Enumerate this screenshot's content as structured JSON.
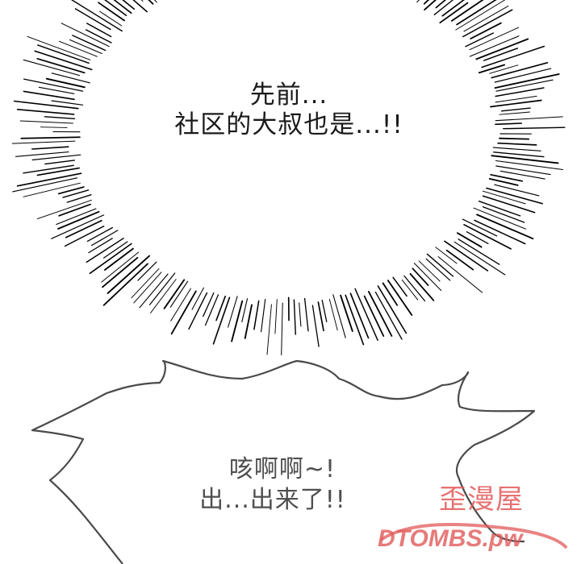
{
  "thought_bubble": {
    "lines": [
      "先前...",
      "社区的大叔也是...!!"
    ]
  },
  "shout_bubble": {
    "lines": [
      "咳啊啊~!",
      "出...出来了!!"
    ]
  },
  "watermark": {
    "site_name": "歪漫屋",
    "domain_text": "DTOMBS.pw",
    "color": "#e25a5a"
  }
}
